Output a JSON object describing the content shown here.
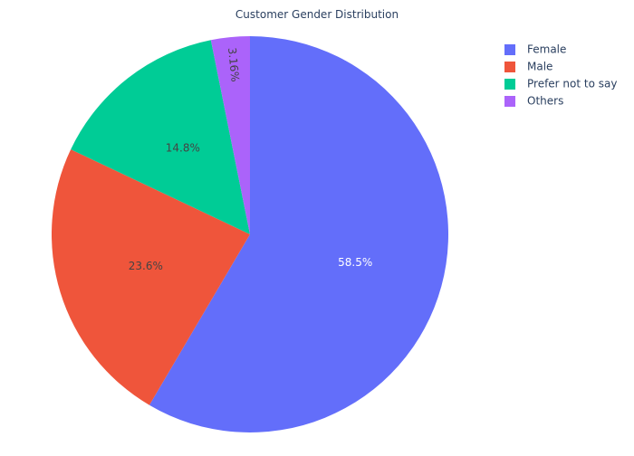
{
  "chart_data": {
    "type": "pie",
    "title": "Customer Gender Distribution",
    "categories": [
      "Female",
      "Male",
      "Prefer not to say",
      "Others"
    ],
    "values": [
      58.5,
      23.6,
      14.8,
      3.16
    ],
    "labels": [
      "58.5%",
      "23.6%",
      "14.8%",
      "3.16%"
    ],
    "colors": [
      "#636efa",
      "#ef553b",
      "#00cc96",
      "#ab63fa"
    ],
    "legend": {
      "placement": "top-right",
      "entries": [
        "Female",
        "Male",
        "Prefer not to say",
        "Others"
      ]
    }
  }
}
